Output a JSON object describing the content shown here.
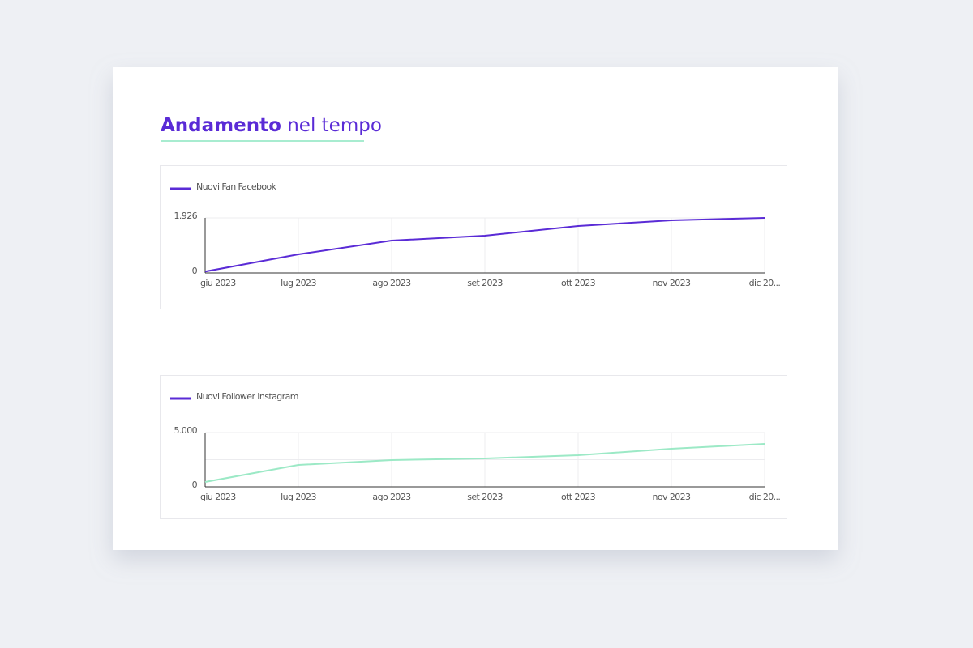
{
  "header": {
    "title_bold": "Andamento",
    "title_rest": "nel tempo"
  },
  "chart_data": [
    {
      "type": "line",
      "categories": [
        "giu 2023",
        "lug 2023",
        "ago 2023",
        "set 2023",
        "ott 2023",
        "nov 2023",
        "dic 20..."
      ],
      "series": [
        {
          "name": "Nuovi Fan Facebook",
          "color": "#5a2bd6",
          "values": [
            50,
            651,
            1133,
            1303,
            1643,
            1841,
            1926
          ]
        }
      ],
      "legend_color": "#5a2bd6",
      "ylim": [
        0,
        1926
      ],
      "yticks": [
        0,
        {
          "value": 1926,
          "label": "1.926"
        }
      ],
      "grid": true
    },
    {
      "type": "line",
      "categories": [
        "giu 2023",
        "lug 2023",
        "ago 2023",
        "set 2023",
        "ott 2023",
        "nov 2023",
        "dic 20..."
      ],
      "series": [
        {
          "name": "Nuovi Follower Instagram",
          "color": "#9ce9c6",
          "values": [
            448,
            2015,
            2463,
            2612,
            2910,
            3507,
            3955
          ]
        }
      ],
      "legend_color": "#5a2bd6",
      "ylim": [
        0,
        5000
      ],
      "yticks": [
        0,
        {
          "value": 5000,
          "label": "5.000"
        }
      ],
      "ygrid": [
        2500
      ],
      "grid": true
    }
  ]
}
